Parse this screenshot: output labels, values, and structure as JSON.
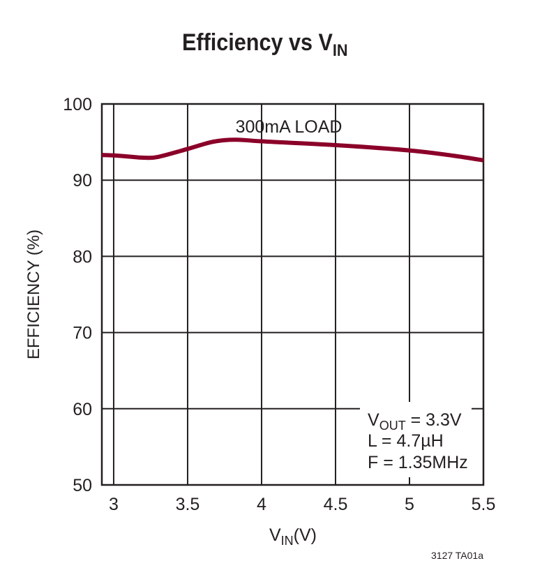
{
  "chart_data": {
    "type": "line",
    "title": {
      "main": "Efficiency vs V",
      "sub": "IN"
    },
    "xlabel": {
      "main": "V",
      "sub": "IN",
      "suffix": "(V)"
    },
    "ylabel": "EFFICIENCY (%)",
    "xlim": [
      2.92,
      5.5
    ],
    "ylim": [
      50,
      100
    ],
    "xticks": [
      3,
      3.5,
      4,
      4.5,
      5,
      5.5
    ],
    "xtick_labels": [
      "3",
      "3.5",
      "4",
      "4.5",
      "5",
      "5.5"
    ],
    "yticks": [
      50,
      60,
      70,
      80,
      90,
      100
    ],
    "ytick_labels": [
      "50",
      "60",
      "70",
      "80",
      "90",
      "100"
    ],
    "grid": true,
    "series": [
      {
        "color": "#8b0029",
        "x": [
          2.92,
          3.0,
          3.1,
          3.2,
          3.3,
          3.5,
          3.65,
          3.75,
          3.85,
          4.0,
          4.5,
          5.0,
          5.3,
          5.5
        ],
        "y": [
          93.3,
          93.25,
          93.1,
          92.95,
          93.05,
          94.1,
          94.95,
          95.25,
          95.3,
          95.1,
          94.6,
          93.9,
          93.2,
          92.6
        ]
      }
    ],
    "annotations": {
      "load": "300mA LOAD",
      "vout_main": "V",
      "vout_sub": "OUT",
      "vout_rest": " = 3.3V",
      "inductor": "L = 4.7µH",
      "frequency": "F = 1.35MHz"
    },
    "figure_code": "3127 TA01a"
  }
}
